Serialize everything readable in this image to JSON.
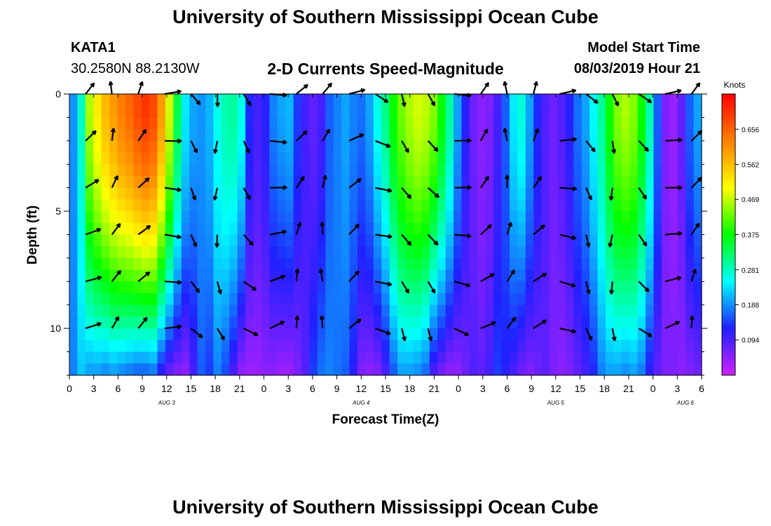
{
  "header": {
    "title_top": "University of Southern Mississippi Ocean Cube",
    "title_bottom": "University of Southern Mississippi Ocean Cube",
    "station_id": "KATA1",
    "station_coords": "30.2580N 88.2130W",
    "plot_title": "2-D Currents Speed-Magnitude",
    "model_label": "Model Start Time",
    "model_time": "08/03/2019 Hour 21"
  },
  "chart_data": {
    "type": "heatmap",
    "title": "2-D Currents Speed-Magnitude",
    "xlabel": "Forecast Time(Z)",
    "ylabel": "Depth (ft)",
    "x_tick_labels": [
      "0",
      "3",
      "6",
      "9",
      "12",
      "15",
      "18",
      "21",
      "0",
      "3",
      "6",
      "9",
      "12",
      "15",
      "18",
      "21",
      "0",
      "3",
      "6",
      "9",
      "12",
      "15",
      "18",
      "21",
      "0",
      "3",
      "6"
    ],
    "x_range_hours": [
      0,
      78
    ],
    "date_labels": [
      {
        "text": "AUG 3",
        "hour": 12
      },
      {
        "text": "AUG 4",
        "hour": 36
      },
      {
        "text": "AUG 5",
        "hour": 60
      },
      {
        "text": "AUG 6",
        "hour": 76
      }
    ],
    "y_tick_labels": [
      "0",
      "5",
      "10"
    ],
    "y_range_ft": [
      0,
      12
    ],
    "y_inverted": true,
    "colorbar": {
      "label": "Knots",
      "tick_labels": [
        "0.656",
        "0.562",
        "0.469",
        "0.375",
        "0.281",
        "0.188",
        "0.094"
      ],
      "range": [
        0,
        0.75
      ],
      "colors": [
        "#d020ff",
        "#2020ff",
        "#00ffff",
        "#00ff00",
        "#ffff00",
        "#ff8000",
        "#ff0000"
      ]
    },
    "speed_profile": {
      "time_hours": [
        0,
        1,
        2,
        3,
        4,
        5,
        6,
        7,
        8,
        9,
        10,
        11,
        12,
        13,
        14,
        15,
        16,
        17,
        18,
        19,
        20,
        21,
        22,
        23,
        24,
        25,
        26,
        27,
        28,
        29,
        30,
        31,
        32,
        33,
        34,
        35,
        36,
        37,
        38,
        39,
        40,
        41,
        42,
        43,
        44,
        45,
        46,
        47,
        48,
        49,
        50,
        51,
        52,
        53,
        54,
        55,
        56,
        57,
        58,
        59,
        60,
        61,
        62,
        63,
        64,
        65,
        66,
        67,
        68,
        69,
        70,
        71,
        72,
        73,
        74,
        75,
        76,
        77,
        78
      ],
      "surface_knots": [
        0.19,
        0.28,
        0.46,
        0.52,
        0.57,
        0.6,
        0.63,
        0.65,
        0.68,
        0.7,
        0.68,
        0.6,
        0.48,
        0.34,
        0.24,
        0.2,
        0.19,
        0.21,
        0.26,
        0.29,
        0.3,
        0.26,
        0.13,
        0.1,
        0.12,
        0.18,
        0.2,
        0.21,
        0.14,
        0.1,
        0.08,
        0.1,
        0.16,
        0.18,
        0.2,
        0.18,
        0.17,
        0.2,
        0.26,
        0.31,
        0.38,
        0.43,
        0.46,
        0.48,
        0.47,
        0.44,
        0.38,
        0.3,
        0.2,
        0.12,
        0.07,
        0.05,
        0.06,
        0.1,
        0.16,
        0.24,
        0.27,
        0.2,
        0.13,
        0.09,
        0.07,
        0.09,
        0.12,
        0.17,
        0.2,
        0.25,
        0.3,
        0.38,
        0.44,
        0.46,
        0.44,
        0.38,
        0.29,
        0.16,
        0.06,
        0.04,
        0.08,
        0.16,
        0.2
      ],
      "bottom_knots": [
        0.18,
        0.22,
        0.2,
        0.2,
        0.19,
        0.2,
        0.19,
        0.18,
        0.17,
        0.17,
        0.18,
        0.12,
        0.08,
        0.06,
        0.05,
        0.1,
        0.16,
        0.14,
        0.18,
        0.15,
        0.1,
        0.05,
        0.04,
        0.04,
        0.05,
        0.05,
        0.04,
        0.04,
        0.06,
        0.09,
        0.14,
        0.17,
        0.18,
        0.17,
        0.16,
        0.12,
        0.06,
        0.05,
        0.06,
        0.1,
        0.16,
        0.2,
        0.2,
        0.19,
        0.17,
        0.1,
        0.07,
        0.05,
        0.05,
        0.07,
        0.09,
        0.08,
        0.1,
        0.14,
        0.12,
        0.1,
        0.07,
        0.06,
        0.07,
        0.08,
        0.06,
        0.05,
        0.06,
        0.08,
        0.1,
        0.13,
        0.18,
        0.2,
        0.2,
        0.19,
        0.2,
        0.18,
        0.12,
        0.08,
        0.06,
        0.06,
        0.05,
        0.06,
        0.07
      ]
    }
  }
}
